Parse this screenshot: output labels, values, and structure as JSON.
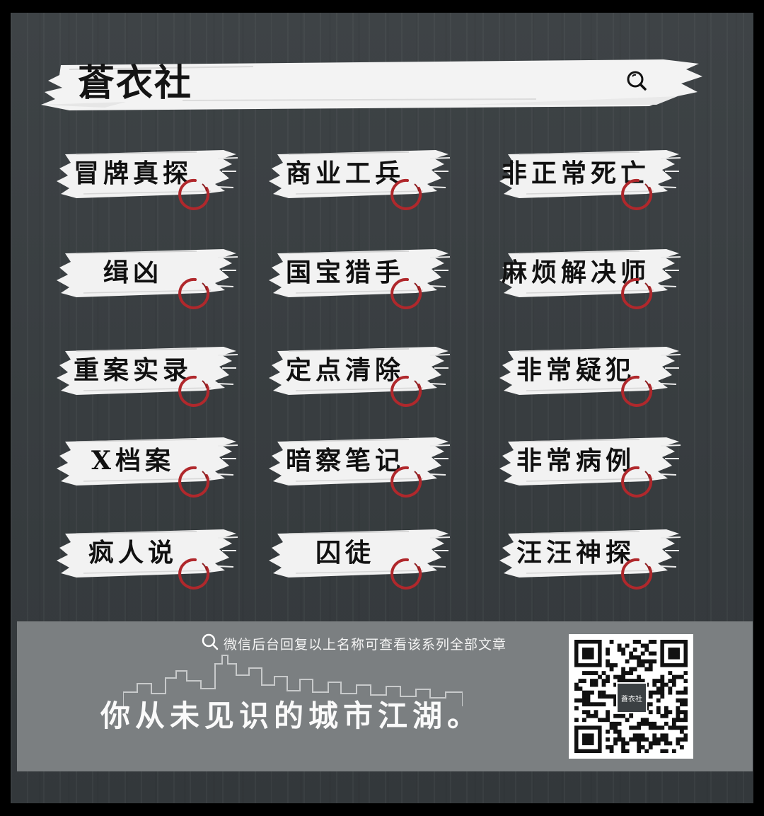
{
  "header": {
    "title": "蒼衣社",
    "search_icon": "search-icon"
  },
  "categories": [
    {
      "label": "冒牌真探"
    },
    {
      "label": "商业工兵"
    },
    {
      "label": "非正常死亡"
    },
    {
      "label": "缉凶"
    },
    {
      "label": "国宝猎手"
    },
    {
      "label": "麻烦解决师"
    },
    {
      "label": "重案实录"
    },
    {
      "label": "定点清除"
    },
    {
      "label": "非常疑犯"
    },
    {
      "label": "X档案"
    },
    {
      "label": "暗察笔记"
    },
    {
      "label": "非常病例"
    },
    {
      "label": "疯人说"
    },
    {
      "label": "囚徒"
    },
    {
      "label": "汪汪神探"
    }
  ],
  "footer": {
    "hint": "微信后台回复以上名称可查看该系列全部文章",
    "slogan": "你从未见识的城市江湖。",
    "qr_logo": "蒼衣社"
  },
  "colors": {
    "background": "#3a3f42",
    "brush": "#f2f2f2",
    "seal": "#b0282c",
    "footer": "#7b7f81"
  }
}
